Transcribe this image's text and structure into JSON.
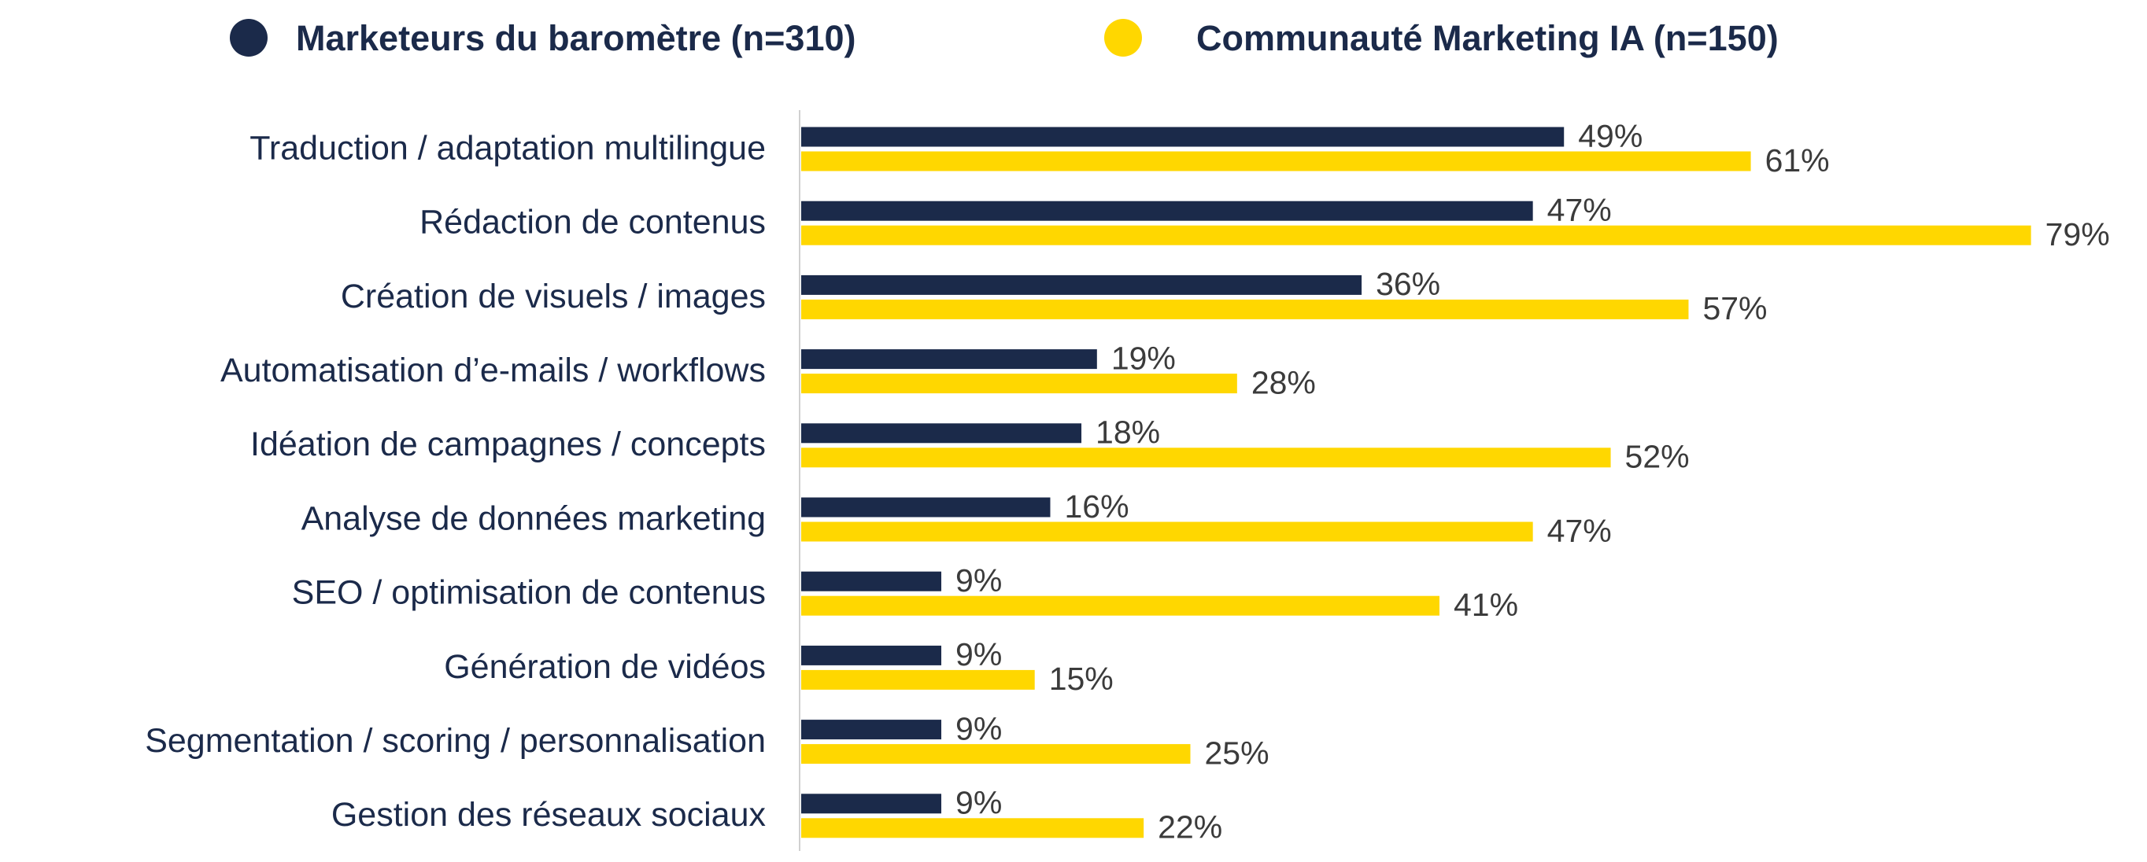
{
  "chart_data": {
    "type": "bar",
    "orientation": "horizontal",
    "title": "",
    "xlabel": "",
    "ylabel": "",
    "xlim": [
      0,
      100
    ],
    "grid": false,
    "legend_position": "top",
    "value_format": "{v}%",
    "categories": [
      "Traduction / adaptation multilingue",
      "Rédaction de contenus",
      "Création de visuels / images",
      "Automatisation d’e-mails / workflows",
      "Idéation de campagnes / concepts",
      "Analyse de données marketing",
      "SEO / optimisation de contenus",
      "Génération de vidéos",
      "Segmentation / scoring / personnalisation",
      "Gestion des réseaux sociaux"
    ],
    "series": [
      {
        "name": "Marketeurs du baromètre (n=310)",
        "color": "#1b2a4a",
        "values": [
          49,
          47,
          36,
          19,
          18,
          16,
          9,
          9,
          9,
          9
        ],
        "labels": [
          "49%",
          "47%",
          "36%",
          "19%",
          "18%",
          "16%",
          "9%",
          "9%",
          "9%",
          "9%"
        ]
      },
      {
        "name": "Communauté Marketing IA (n=150)",
        "color": "#ffd700",
        "values": [
          61,
          79,
          57,
          28,
          52,
          47,
          41,
          15,
          25,
          22
        ],
        "labels": [
          "61%",
          "79%",
          "57%",
          "28%",
          "52%",
          "47%",
          "41%",
          "15%",
          "25%",
          "22%"
        ]
      }
    ]
  }
}
